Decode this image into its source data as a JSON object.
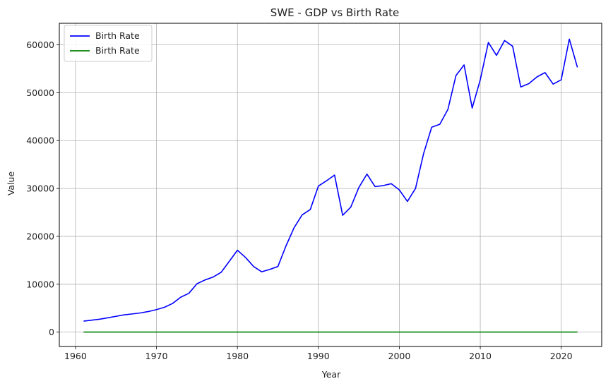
{
  "chart_data": {
    "type": "line",
    "title": "SWE - GDP vs Birth Rate",
    "xlabel": "Year",
    "ylabel": "Value",
    "xlim": [
      1958,
      2025
    ],
    "ylim": [
      -3000,
      64500
    ],
    "xticks": [
      1960,
      1970,
      1980,
      1990,
      2000,
      2010,
      2020
    ],
    "yticks": [
      0,
      10000,
      20000,
      30000,
      40000,
      50000,
      60000
    ],
    "grid": true,
    "legend": "top-left",
    "series": [
      {
        "name": "Birth Rate",
        "color": "#0000ff",
        "x": [
          1961,
          1962,
          1963,
          1964,
          1965,
          1966,
          1967,
          1968,
          1969,
          1970,
          1971,
          1972,
          1973,
          1974,
          1975,
          1976,
          1977,
          1978,
          1979,
          1980,
          1981,
          1982,
          1983,
          1984,
          1985,
          1986,
          1987,
          1988,
          1989,
          1990,
          1991,
          1992,
          1993,
          1994,
          1995,
          1996,
          1997,
          1998,
          1999,
          2000,
          2001,
          2002,
          2003,
          2004,
          2005,
          2006,
          2007,
          2008,
          2009,
          2010,
          2011,
          2012,
          2013,
          2014,
          2015,
          2016,
          2017,
          2018,
          2019,
          2020,
          2021,
          2022
        ],
        "y": [
          2300,
          2500,
          2700,
          3000,
          3300,
          3600,
          3800,
          4000,
          4300,
          4700,
          5200,
          6000,
          7300,
          8100,
          10100,
          10900,
          11500,
          12500,
          14800,
          17100,
          15600,
          13700,
          12600,
          13100,
          13700,
          18000,
          21800,
          24500,
          25600,
          30500,
          31600,
          32800,
          24400,
          26100,
          30200,
          33000,
          30400,
          30600,
          31000,
          29700,
          27300,
          30000,
          37300,
          42800,
          43400,
          46500,
          53600,
          55800,
          46800,
          52700,
          60500,
          57800,
          60900,
          59700,
          51200,
          51900,
          53300,
          54200,
          51800,
          52700,
          61200,
          55300
        ]
      },
      {
        "name": "Birth Rate",
        "color": "#008000",
        "x": [
          1961,
          1965,
          1970,
          1975,
          1980,
          1985,
          1990,
          1995,
          2000,
          2005,
          2010,
          2015,
          2020,
          2022
        ],
        "y": [
          14,
          16,
          13.7,
          12.6,
          11.7,
          11.8,
          14.5,
          11.7,
          10.2,
          11.2,
          12.3,
          11.7,
          10.8,
          9.9
        ]
      }
    ]
  }
}
